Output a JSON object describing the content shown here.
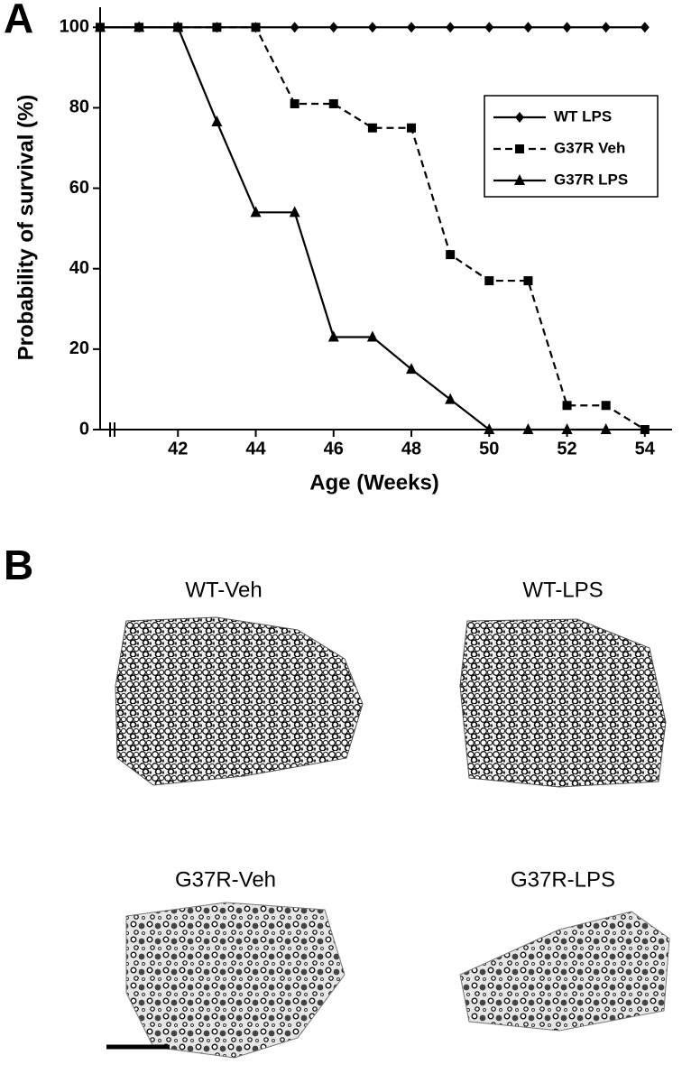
{
  "chart_data": {
    "type": "line",
    "panel": "A",
    "x_label": "Age (Weeks)",
    "y_label": "Probability of survival (%)",
    "x": [
      40,
      41,
      42,
      43,
      44,
      45,
      46,
      47,
      48,
      49,
      50,
      51,
      52,
      53,
      54
    ],
    "series": [
      {
        "name": "WT LPS",
        "color": "#000000",
        "dash": false,
        "marker": "diamond",
        "values": [
          100,
          100,
          100,
          100,
          100,
          100,
          100,
          100,
          100,
          100,
          100,
          100,
          100,
          100,
          100
        ]
      },
      {
        "name": "G37R Veh",
        "color": "#000000",
        "dash": true,
        "marker": "square",
        "values": [
          100,
          100,
          100,
          100,
          100,
          81,
          81,
          75,
          75,
          43.5,
          37,
          37,
          6,
          6,
          0
        ]
      },
      {
        "name": "G37R LPS",
        "color": "#000000",
        "dash": false,
        "marker": "triangle",
        "values": [
          100,
          100,
          100,
          76.5,
          54,
          54,
          23,
          23,
          15,
          7.5,
          0,
          0,
          0,
          0,
          null
        ]
      }
    ],
    "xlim": [
      40,
      54.7
    ],
    "ylim": [
      0,
      105
    ],
    "xticks": [
      42,
      44,
      46,
      48,
      50,
      52,
      54
    ],
    "yticks": [
      0,
      20,
      40,
      60,
      80,
      100
    ],
    "legend": "upper right",
    "grid": false
  },
  "panel_b": {
    "label": "B",
    "images": [
      "WT-Veh",
      "WT-LPS",
      "G37R-Veh",
      "G37R-LPS"
    ]
  }
}
